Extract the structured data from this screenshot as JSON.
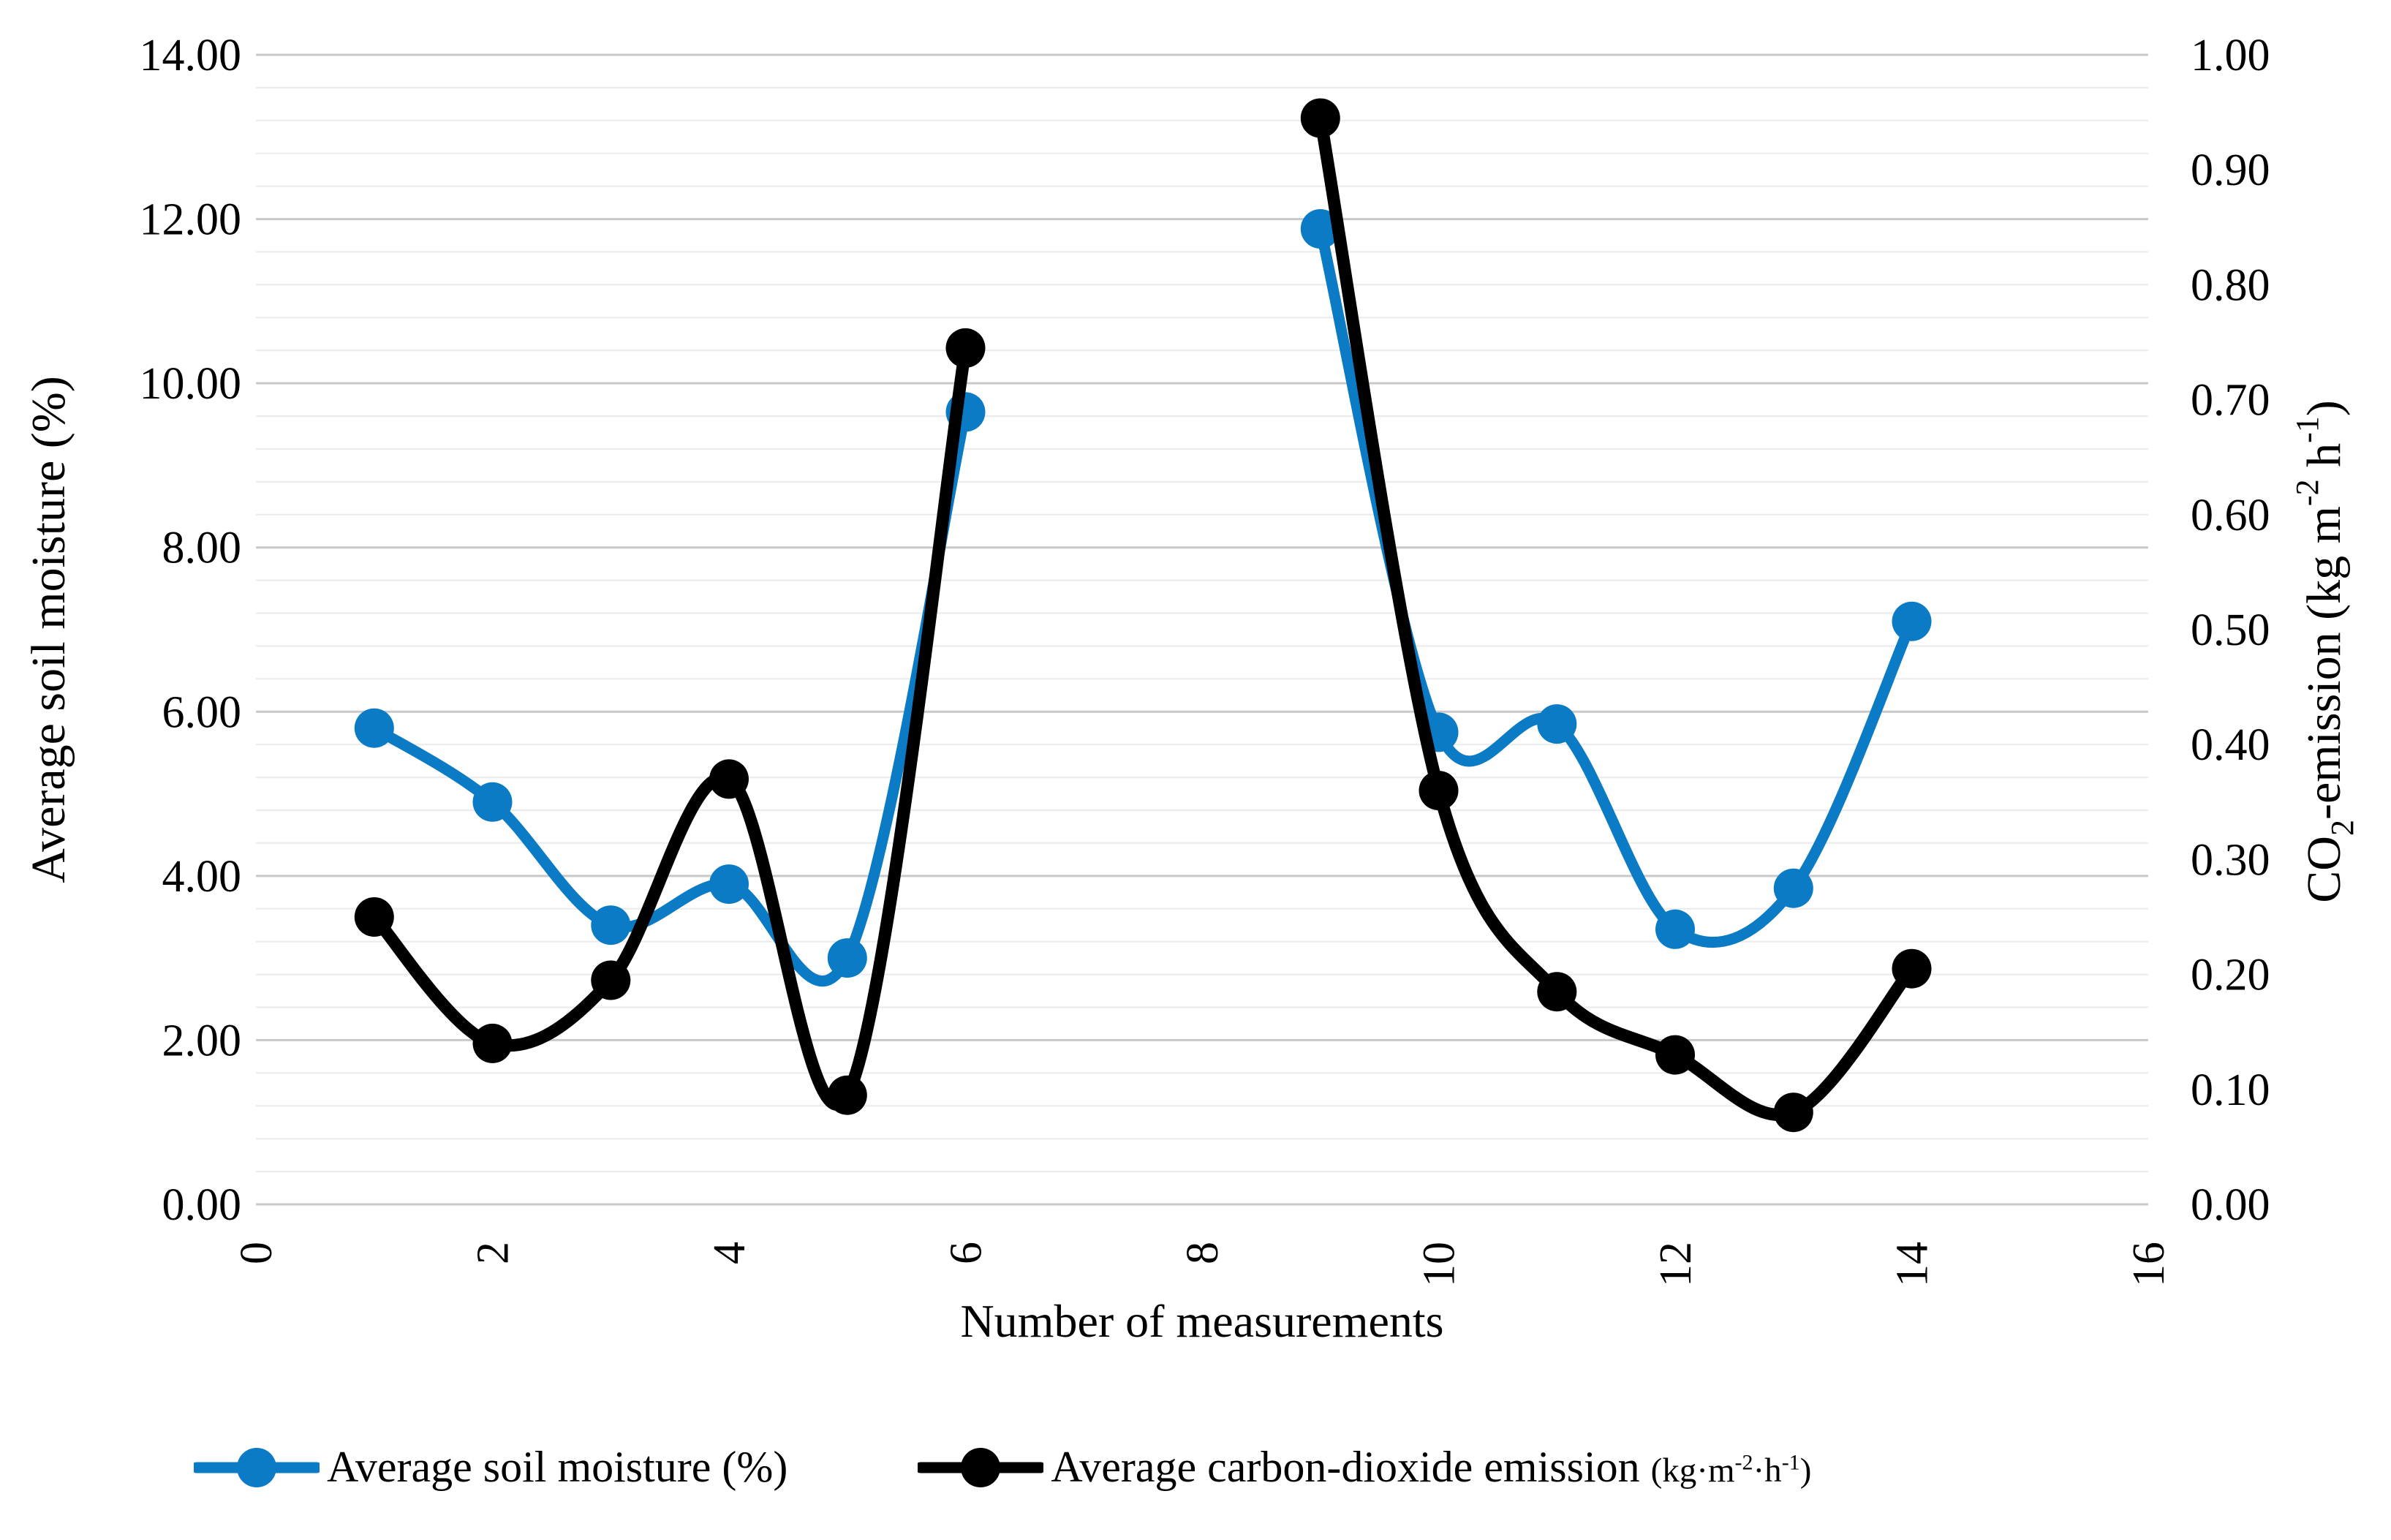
{
  "chart_data": {
    "type": "line",
    "smooth": true,
    "grid": "horizontal major+minor, vertical off",
    "legend_position": "bottom",
    "x": [
      1,
      2,
      3,
      4,
      5,
      6,
      7,
      8,
      9,
      10,
      11,
      12,
      13,
      14
    ],
    "series": [
      {
        "name": "Average soil moisture (%)",
        "axis": "left",
        "color": "#0a7bc4",
        "marker": "circle",
        "values": [
          5.8,
          4.9,
          3.4,
          3.9,
          3.0,
          9.65,
          null,
          null,
          11.88,
          5.75,
          5.85,
          3.35,
          3.85,
          7.1
        ]
      },
      {
        "name": "Average carbon-dioxide emission (kg·m-2·h-1)",
        "axis": "right",
        "color": "#000000",
        "marker": "circle",
        "values": [
          0.25,
          0.14,
          0.195,
          0.37,
          0.095,
          0.745,
          null,
          null,
          0.945,
          0.36,
          0.185,
          0.13,
          0.08,
          0.205
        ]
      }
    ],
    "xlabel": "Number of measurements",
    "ylabel_left": "Average soil moisture (%)",
    "ylabel_right": "CO2-emission (kg m-2 h-1)",
    "xlim": [
      0,
      16
    ],
    "ylim_left": [
      0.0,
      14.0
    ],
    "ylim_right": [
      0.0,
      1.0
    ],
    "y_major_unit_left": 2.0,
    "y_minor_unit_left": 0.4,
    "y_tick_unit_right": 0.1,
    "x_tick_unit": 2
  },
  "axes": {
    "left_tick_labels": [
      "0.00",
      "2.00",
      "4.00",
      "6.00",
      "8.00",
      "10.00",
      "12.00",
      "14.00"
    ],
    "right_tick_labels": [
      "0.00",
      "0.10",
      "0.20",
      "0.30",
      "0.40",
      "0.50",
      "0.60",
      "0.70",
      "0.80",
      "0.90",
      "1.00"
    ],
    "x_tick_labels": [
      "0",
      "2",
      "4",
      "6",
      "8",
      "10",
      "12",
      "14",
      "16"
    ]
  },
  "titles": {
    "x_axis": "Number of measurements",
    "y_left": "Average soil moisture (%)",
    "y_right_parts": [
      {
        "t": "CO",
        "style": "normal"
      },
      {
        "t": "2",
        "style": "sub"
      },
      {
        "t": "-emission (kg m",
        "style": "normal"
      },
      {
        "t": "-2",
        "style": "sup"
      },
      {
        "t": " h",
        "style": "normal"
      },
      {
        "t": "-1",
        "style": "sup"
      },
      {
        "t": ")",
        "style": "normal"
      }
    ]
  },
  "legend": {
    "soil_label": "Average soil moisture (%)",
    "co2_label": "Average carbon-dioxide emission ",
    "co2_unit_prefix": "(kg·m",
    "co2_unit_sup1": "-2",
    "co2_unit_mid": "·h",
    "co2_unit_sup2": "-1",
    "co2_unit_suffix": ")"
  },
  "colors": {
    "soil_series": "#0a7bc4",
    "co2_series": "#000000",
    "major_gridline": "#c9c9c9",
    "minor_gridline": "#ececec",
    "text": "#000000",
    "background": "#ffffff"
  }
}
